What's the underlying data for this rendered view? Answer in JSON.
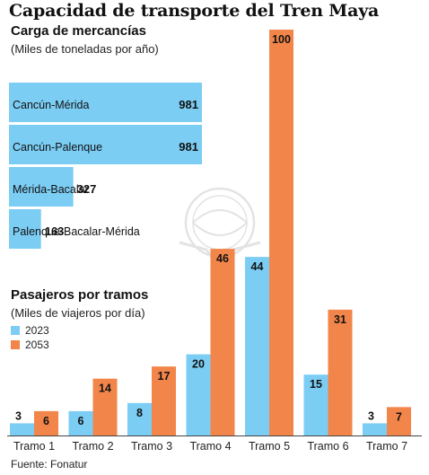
{
  "title": "Capacidad de transporte del Tren Maya",
  "freight": {
    "heading": "Carga de mercancías",
    "unit": "(Miles de toneladas por año)"
  },
  "passengers": {
    "heading": "Pasajeros por tramos",
    "unit": "(Miles de viajeros por día)"
  },
  "source": "Fuente: Fonatur",
  "colors": {
    "blue": "#7ccdf4",
    "orange": "#f2854a",
    "axis": "#444444"
  },
  "chart_data": [
    {
      "type": "bar",
      "orientation": "horizontal",
      "title": "Carga de mercancías",
      "subtitle": "(Miles de toneladas por año)",
      "categories": [
        "Cancún-Mérida",
        "Cancún-Palenque",
        "Mérida-Bacalar",
        "Palenque-Bacalar-Mérida"
      ],
      "values": [
        981,
        981,
        327,
        163
      ],
      "value_labels": [
        "981",
        "981",
        "327",
        "163"
      ]
    },
    {
      "type": "bar",
      "title": "Pasajeros por tramos",
      "subtitle": "(Miles de viajeros por día)",
      "categories": [
        "Tramo 1",
        "Tramo 2",
        "Tramo 3",
        "Tramo 4",
        "Tramo 5",
        "Tramo 6",
        "Tramo 7"
      ],
      "series": [
        {
          "name": "2023",
          "values": [
            3,
            6,
            8,
            20,
            44,
            15,
            3
          ],
          "color": "#7ccdf4"
        },
        {
          "name": "2053",
          "values": [
            6,
            14,
            17,
            46,
            100,
            31,
            7
          ],
          "color": "#f2854a"
        }
      ],
      "ylim": [
        0,
        100
      ],
      "legend": "top-left"
    }
  ]
}
